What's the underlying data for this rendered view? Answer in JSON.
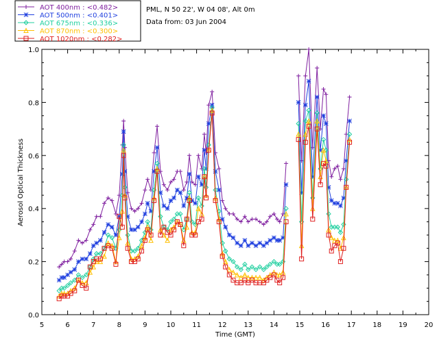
{
  "chart_data": {
    "type": "line",
    "title_lines": [
      "PML, N 50 22', W 04 08', Alt 0m",
      "Data from: 03 Jun 2004"
    ],
    "xlabel": "Time (GMT)",
    "ylabel": "Aerosol Optical Thickness",
    "xlim": [
      5,
      20
    ],
    "ylim": [
      0.0,
      1.0
    ],
    "xticks": [
      "5",
      "6",
      "7",
      "8",
      "9",
      "10",
      "11",
      "12",
      "13",
      "14",
      "15",
      "16",
      "17",
      "18",
      "19",
      "20"
    ],
    "yticks": [
      "0.0",
      "0.2",
      "0.4",
      "0.6",
      "0.8",
      "1.0"
    ],
    "x": [
      5.67,
      5.77,
      5.87,
      6.0,
      6.12,
      6.27,
      6.42,
      6.57,
      6.72,
      6.87,
      7.0,
      7.12,
      7.27,
      7.42,
      7.57,
      7.72,
      7.87,
      8.0,
      8.12,
      8.17,
      8.22,
      8.33,
      8.47,
      8.6,
      8.73,
      8.87,
      9.0,
      9.1,
      9.23,
      9.35,
      9.47,
      9.6,
      9.73,
      9.87,
      10.0,
      10.12,
      10.25,
      10.37,
      10.5,
      10.62,
      10.72,
      10.82,
      10.95,
      11.07,
      11.2,
      11.3,
      11.37,
      11.47,
      11.6,
      11.73,
      11.87,
      12.0,
      12.12,
      12.27,
      12.42,
      12.57,
      12.72,
      12.87,
      13.0,
      13.15,
      13.3,
      13.45,
      13.6,
      13.72,
      13.85,
      14.0,
      14.12,
      14.22,
      14.35,
      14.47,
      14.95,
      15.07,
      15.22,
      15.35,
      15.5,
      15.67,
      15.8,
      15.92,
      16.02,
      16.12,
      16.23,
      16.35,
      16.47,
      16.58,
      16.7,
      16.8,
      16.93
    ],
    "series": [
      {
        "name": "AOT  400nm : <0.482>",
        "color": "#7f1f9f",
        "marker": "plus",
        "values": [
          0.18,
          0.19,
          0.2,
          0.2,
          0.21,
          0.24,
          0.28,
          0.27,
          0.28,
          0.32,
          0.34,
          0.37,
          0.37,
          0.42,
          0.44,
          0.43,
          0.38,
          0.45,
          0.64,
          0.73,
          0.63,
          0.46,
          0.4,
          0.39,
          0.4,
          0.42,
          0.47,
          0.51,
          0.47,
          0.61,
          0.71,
          0.54,
          0.49,
          0.47,
          0.5,
          0.51,
          0.54,
          0.54,
          0.47,
          0.5,
          0.6,
          0.5,
          0.49,
          0.6,
          0.55,
          0.68,
          0.61,
          0.79,
          0.84,
          0.61,
          0.55,
          0.43,
          0.4,
          0.38,
          0.38,
          0.36,
          0.35,
          0.37,
          0.35,
          0.36,
          0.36,
          0.35,
          0.34,
          0.35,
          0.37,
          0.38,
          0.36,
          0.35,
          0.38,
          0.57,
          0.9,
          0.58,
          0.9,
          1.0,
          0.63,
          0.93,
          0.7,
          0.85,
          0.83,
          0.58,
          0.52,
          0.55,
          0.56,
          0.51,
          0.55,
          0.68,
          0.82
        ]
      },
      {
        "name": "AOT  500nm : <0.401>",
        "color": "#1f3fdf",
        "marker": "asterisk",
        "values": [
          0.13,
          0.14,
          0.14,
          0.15,
          0.16,
          0.17,
          0.2,
          0.21,
          0.21,
          0.23,
          0.26,
          0.27,
          0.28,
          0.31,
          0.34,
          0.33,
          0.3,
          0.37,
          0.53,
          0.69,
          0.54,
          0.37,
          0.32,
          0.32,
          0.33,
          0.35,
          0.38,
          0.42,
          0.39,
          0.54,
          0.63,
          0.46,
          0.41,
          0.4,
          0.43,
          0.44,
          0.47,
          0.46,
          0.41,
          0.44,
          0.53,
          0.43,
          0.42,
          0.52,
          0.49,
          0.62,
          0.55,
          0.72,
          0.79,
          0.54,
          0.47,
          0.36,
          0.33,
          0.3,
          0.29,
          0.27,
          0.26,
          0.28,
          0.26,
          0.27,
          0.26,
          0.27,
          0.26,
          0.27,
          0.28,
          0.29,
          0.28,
          0.28,
          0.29,
          0.49,
          0.8,
          0.46,
          0.79,
          0.88,
          0.52,
          0.82,
          0.62,
          0.75,
          0.72,
          0.48,
          0.43,
          0.42,
          0.42,
          0.41,
          0.44,
          0.58,
          0.73
        ]
      },
      {
        "name": "AOT  675nm : <0.336>",
        "color": "#1fcf9f",
        "marker": "diamond",
        "values": [
          0.09,
          0.1,
          0.1,
          0.11,
          0.12,
          0.13,
          0.15,
          0.14,
          0.15,
          0.18,
          0.21,
          0.23,
          0.23,
          0.25,
          0.3,
          0.29,
          0.25,
          0.32,
          0.45,
          0.64,
          0.48,
          0.3,
          0.24,
          0.24,
          0.25,
          0.28,
          0.31,
          0.35,
          0.32,
          0.47,
          0.57,
          0.37,
          0.33,
          0.32,
          0.35,
          0.36,
          0.38,
          0.38,
          0.32,
          0.36,
          0.46,
          0.35,
          0.34,
          0.44,
          0.41,
          0.55,
          0.48,
          0.64,
          0.78,
          0.47,
          0.39,
          0.27,
          0.24,
          0.21,
          0.2,
          0.18,
          0.17,
          0.19,
          0.17,
          0.18,
          0.17,
          0.18,
          0.17,
          0.18,
          0.19,
          0.2,
          0.19,
          0.19,
          0.2,
          0.4,
          0.72,
          0.35,
          0.73,
          0.77,
          0.44,
          0.76,
          0.55,
          0.66,
          0.62,
          0.38,
          0.33,
          0.33,
          0.33,
          0.31,
          0.34,
          0.51,
          0.68
        ]
      },
      {
        "name": "AOT  870nm : <0.300>",
        "color": "#ffbf00",
        "marker": "triangle",
        "values": [
          0.07,
          0.08,
          0.08,
          0.08,
          0.09,
          0.1,
          0.13,
          0.12,
          0.12,
          0.16,
          0.18,
          0.2,
          0.2,
          0.22,
          0.27,
          0.26,
          0.2,
          0.29,
          0.39,
          0.62,
          0.45,
          0.27,
          0.21,
          0.21,
          0.22,
          0.26,
          0.29,
          0.33,
          0.28,
          0.44,
          0.55,
          0.32,
          0.3,
          0.28,
          0.32,
          0.33,
          0.35,
          0.34,
          0.28,
          0.33,
          0.44,
          0.31,
          0.31,
          0.4,
          0.38,
          0.52,
          0.45,
          0.62,
          0.77,
          0.44,
          0.36,
          0.23,
          0.2,
          0.17,
          0.16,
          0.15,
          0.14,
          0.15,
          0.14,
          0.14,
          0.14,
          0.14,
          0.13,
          0.14,
          0.15,
          0.16,
          0.15,
          0.15,
          0.16,
          0.38,
          0.68,
          0.26,
          0.68,
          0.73,
          0.4,
          0.73,
          0.52,
          0.62,
          0.58,
          0.32,
          0.29,
          0.28,
          0.28,
          0.25,
          0.29,
          0.48,
          0.66
        ]
      },
      {
        "name": "AOT 1020nm : <0.282>",
        "color": "#df1f1f",
        "marker": "square",
        "values": [
          0.06,
          0.07,
          0.07,
          0.07,
          0.08,
          0.09,
          0.13,
          0.11,
          0.1,
          0.18,
          0.2,
          0.21,
          0.21,
          0.25,
          0.26,
          0.25,
          0.19,
          0.37,
          0.33,
          0.6,
          0.44,
          0.25,
          0.2,
          0.2,
          0.21,
          0.24,
          0.28,
          0.32,
          0.3,
          0.43,
          0.54,
          0.3,
          0.33,
          0.31,
          0.3,
          0.32,
          0.35,
          0.34,
          0.26,
          0.36,
          0.43,
          0.3,
          0.3,
          0.35,
          0.36,
          0.52,
          0.44,
          0.62,
          0.76,
          0.43,
          0.35,
          0.22,
          0.18,
          0.15,
          0.13,
          0.12,
          0.12,
          0.13,
          0.12,
          0.13,
          0.12,
          0.12,
          0.12,
          0.13,
          0.14,
          0.15,
          0.13,
          0.12,
          0.14,
          0.35,
          0.66,
          0.21,
          0.65,
          0.71,
          0.36,
          0.7,
          0.49,
          0.57,
          0.56,
          0.3,
          0.24,
          0.26,
          0.27,
          0.2,
          0.25,
          0.48,
          0.65
        ]
      }
    ]
  }
}
